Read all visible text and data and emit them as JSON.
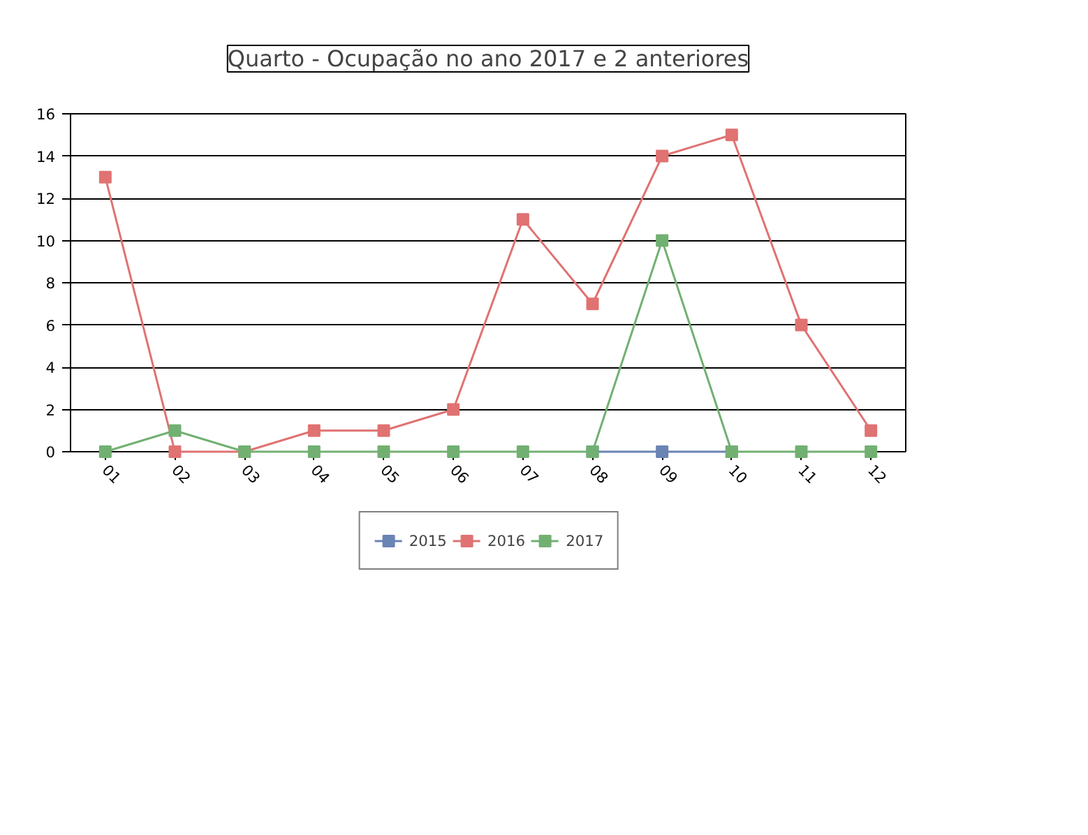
{
  "chart_data": {
    "type": "line",
    "title": "Quarto - Ocupação no ano 2017 e 2 anteriores",
    "categories": [
      "01",
      "02",
      "03",
      "04",
      "05",
      "06",
      "07",
      "08",
      "09",
      "10",
      "11",
      "12"
    ],
    "series": [
      {
        "name": "2015",
        "color": "#6a84b4",
        "values": [
          null,
          null,
          null,
          null,
          null,
          null,
          null,
          0,
          0,
          0,
          null,
          null
        ]
      },
      {
        "name": "2016",
        "color": "#e07272",
        "values": [
          13,
          0,
          0,
          1,
          1,
          2,
          11,
          7,
          14,
          15,
          6,
          1
        ]
      },
      {
        "name": "2017",
        "color": "#72b072",
        "values": [
          0,
          1,
          0,
          0,
          0,
          0,
          0,
          0,
          10,
          0,
          0,
          0
        ]
      }
    ],
    "ylim": [
      0,
      16
    ],
    "yticks": [
      0,
      2,
      4,
      6,
      8,
      10,
      12,
      14,
      16
    ],
    "grid": "y",
    "legend": "bottom",
    "marker": "square",
    "line_style": "solid"
  }
}
